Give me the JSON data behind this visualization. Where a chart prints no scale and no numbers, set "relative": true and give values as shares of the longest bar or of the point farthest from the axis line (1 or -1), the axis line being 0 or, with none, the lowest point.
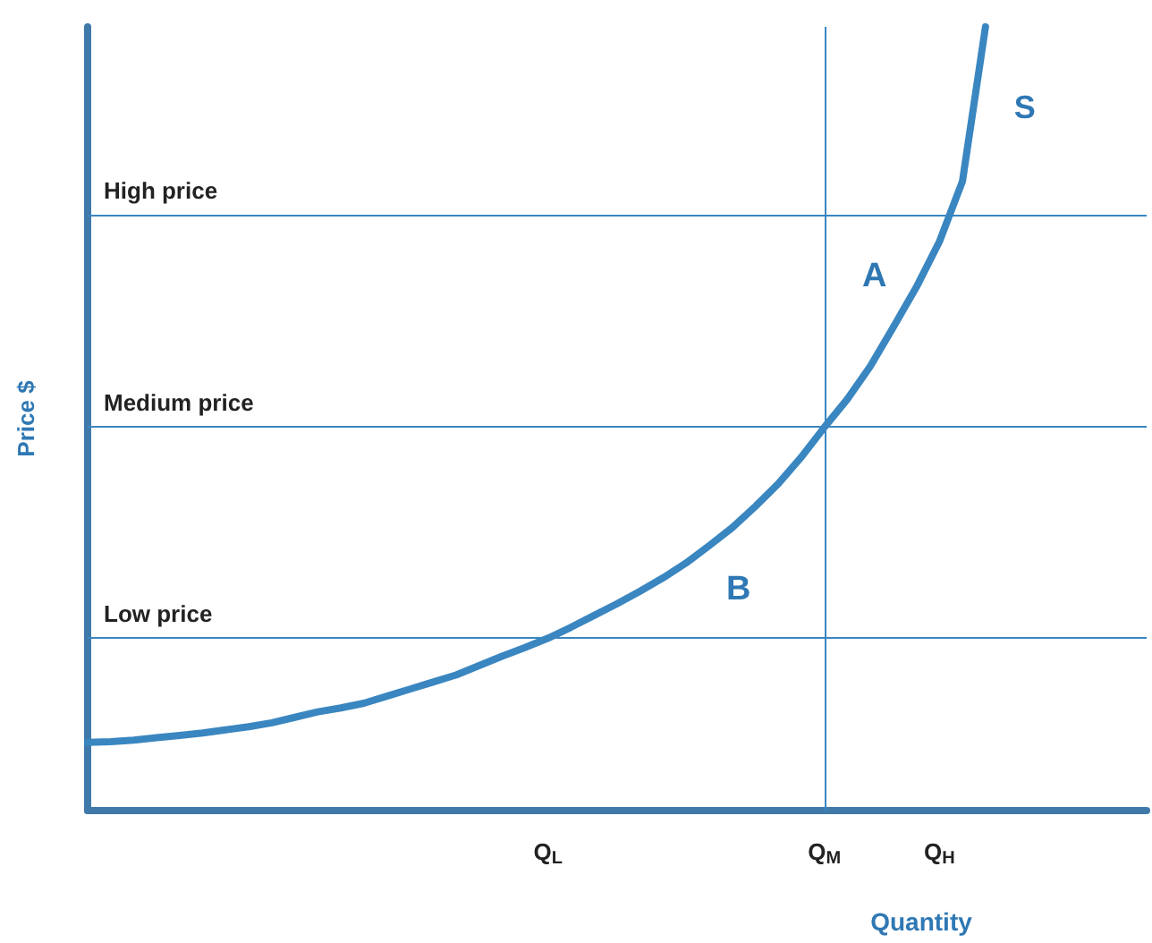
{
  "chart_data": {
    "type": "line",
    "relative": true,
    "xlabel": "Quantity",
    "ylabel": "Price $",
    "categories": [
      null,
      null,
      null,
      null,
      null,
      null,
      null,
      null,
      null,
      null,
      null,
      null,
      null,
      null,
      null,
      null,
      null,
      null,
      null,
      null,
      "Q$_{L}$",
      null,
      null,
      null,
      null,
      null,
      null,
      null,
      null,
      null,
      null,
      null,
      "Q$_{M}$",
      null,
      null,
      null,
      null,
      "Q$_{H}$",
      null,
      null,
      null,
      null,
      null,
      null,
      null,
      null,
      null
    ],
    "series": [
      {
        "name": "S",
        "color": "#3a86c0",
        "values": [
          0.087,
          0.088,
          0.09,
          0.093,
          0.096,
          0.099,
          0.103,
          0.107,
          0.112,
          0.119,
          0.126,
          0.131,
          0.137,
          0.146,
          0.155,
          0.164,
          0.173,
          0.185,
          0.197,
          0.208,
          0.22,
          0.234,
          0.249,
          0.264,
          0.28,
          0.297,
          0.316,
          0.338,
          0.361,
          0.388,
          0.417,
          0.451,
          0.489,
          0.525,
          0.567,
          0.617,
          0.668,
          0.726,
          0.803,
          1.0,
          null,
          null,
          null,
          null,
          null,
          null,
          null
        ]
      }
    ],
    "ref_lines": [
      {
        "axis": "y",
        "value": 0.756,
        "label": "High price",
        "color": "#3a86c0"
      },
      {
        "axis": "y",
        "value": 0.489,
        "label": "Medium price",
        "color": "#3a86c0"
      },
      {
        "axis": "y",
        "value": 0.22,
        "label": "Low price",
        "color": "#3a86c0"
      },
      {
        "axis": "x",
        "value": "Q$_{M}$",
        "label": null,
        "color": "#3a86c0"
      }
    ],
    "annotations": [
      "A",
      "B"
    ],
    "grid": false,
    "marker": "none",
    "line_style": "solid"
  }
}
